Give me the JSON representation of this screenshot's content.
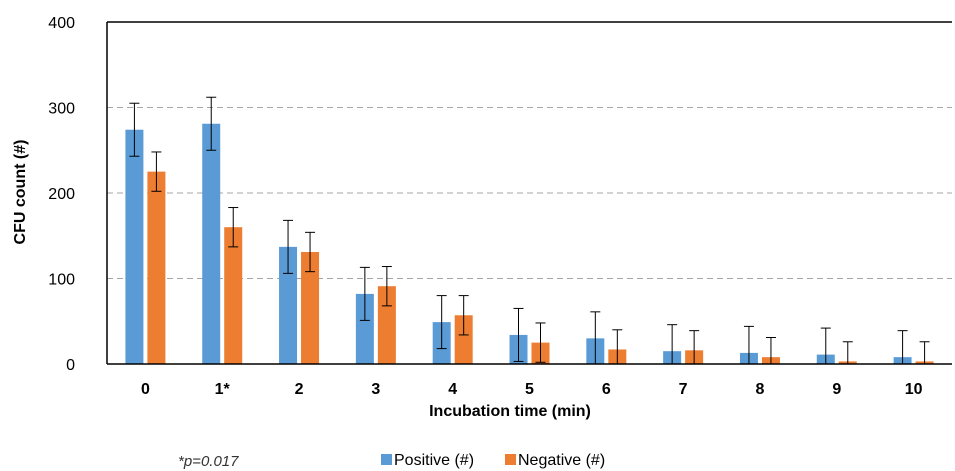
{
  "chart_data": {
    "type": "bar",
    "categories": [
      "0",
      "1*",
      "2",
      "3",
      "4",
      "5",
      "6",
      "7",
      "8",
      "9",
      "10"
    ],
    "series": [
      {
        "name": "Positive (#)",
        "color": "#5b9bd5",
        "values": [
          274,
          281,
          137,
          82,
          49,
          34,
          30,
          15,
          13,
          11,
          8
        ],
        "errors": [
          31,
          31,
          31,
          31,
          31,
          31,
          31,
          31,
          31,
          31,
          31
        ]
      },
      {
        "name": "Negative (#)",
        "color": "#ed7d31",
        "values": [
          225,
          160,
          131,
          91,
          57,
          25,
          17,
          16,
          8,
          3,
          3
        ],
        "errors": [
          23,
          23,
          23,
          23,
          23,
          23,
          23,
          23,
          23,
          23,
          23
        ]
      }
    ],
    "xlabel": "Incubation time (min)",
    "ylabel": "CFU count (#)",
    "ylim": [
      0,
      400
    ],
    "yticks": [
      0,
      100,
      200,
      300,
      400
    ],
    "grid": "horizontal-dashed",
    "legend": "bottom",
    "annotation": "*p=0.017"
  }
}
